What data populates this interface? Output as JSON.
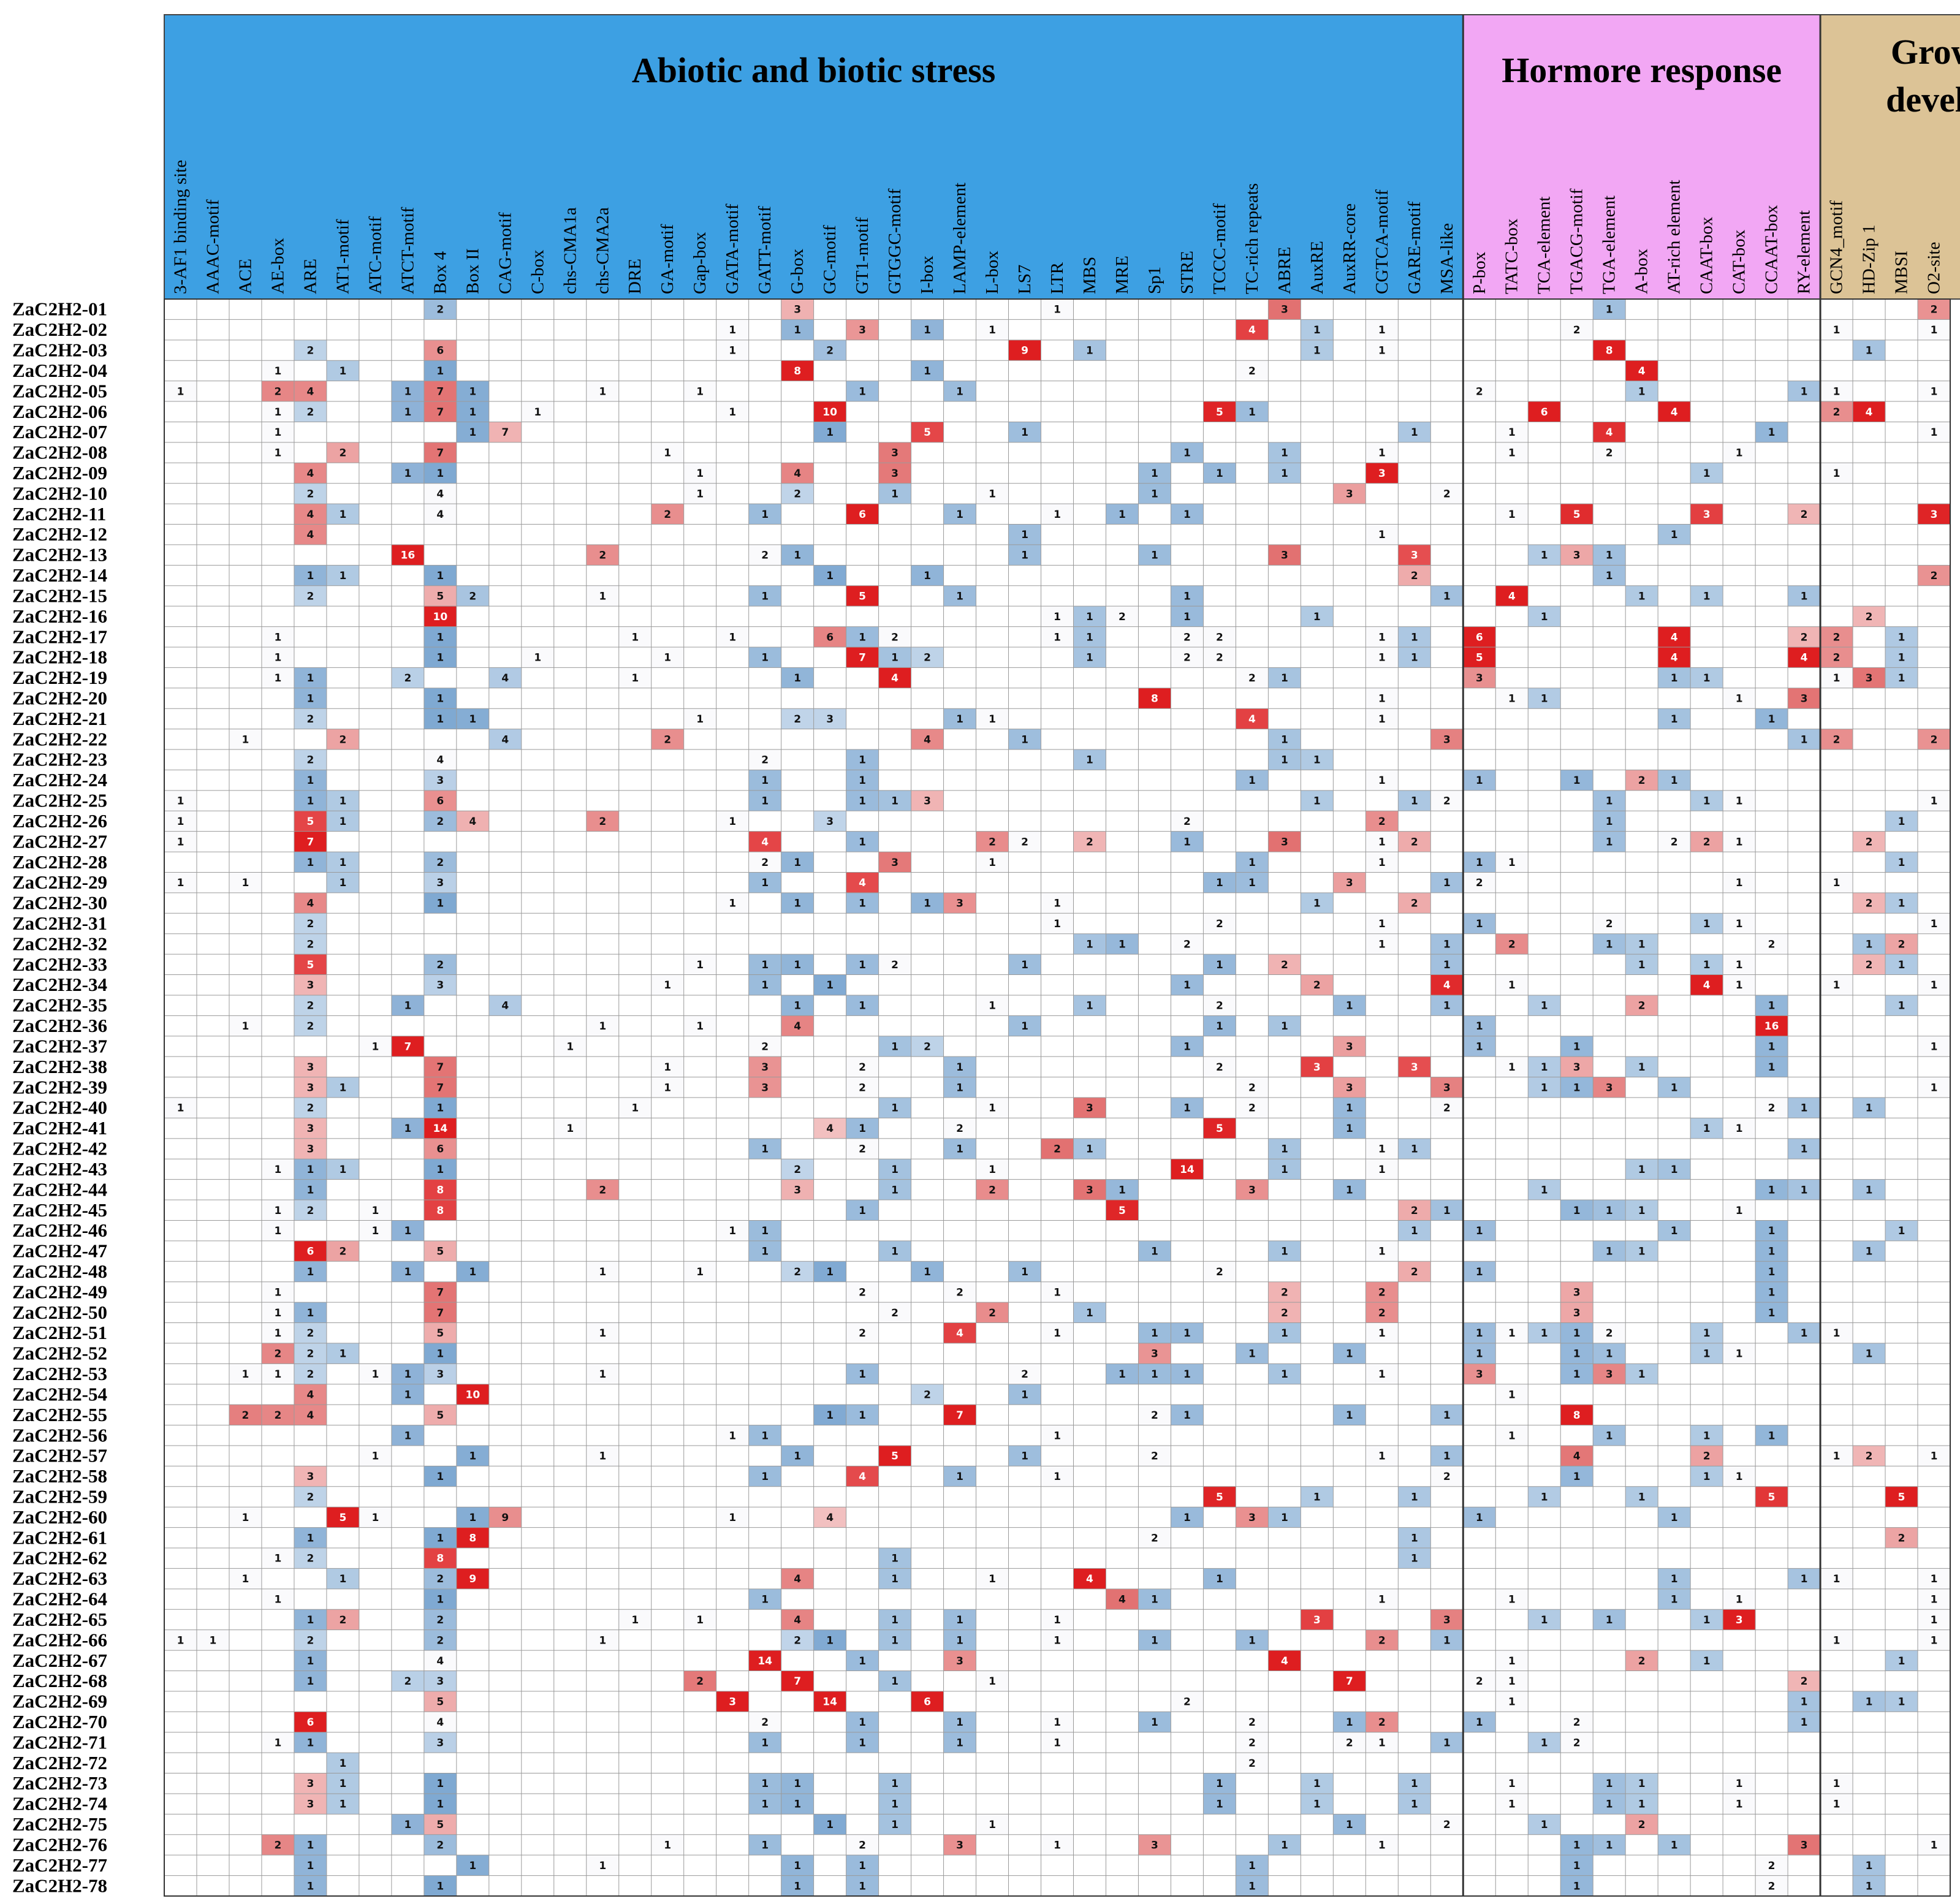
{
  "chart_data": {
    "type": "heatmap",
    "title": "",
    "groups": [
      {
        "name_lines": [
          "Abiotic and biotic stress"
        ],
        "color": "#3da0e3",
        "start": 0,
        "end": 39
      },
      {
        "name_lines": [
          "Hormore response"
        ],
        "color": "#f2a7f4",
        "start": 40,
        "end": 50
      },
      {
        "name_lines": [
          "Growth and",
          "development"
        ],
        "color": "#dcc396",
        "start": 51,
        "end": 60
      }
    ],
    "columns": [
      "3-AF1 binding site",
      "AAAC-motif",
      "ACE",
      "AE-box",
      "ARE",
      "AT1-motif",
      "ATC-motif",
      "ATCT-motif",
      "Box 4",
      "Box II",
      "CAG-motif",
      "C-box",
      "chs-CMA1a",
      "chs-CMA2a",
      "DRE",
      "GA-motif",
      "Gap-box",
      "GATA-motif",
      "GATT-motif",
      "G-box",
      "GC-motif",
      "GT1-motif",
      "GTGGC-motif",
      "I-box",
      "LAMP-element",
      "L-box",
      "LS7",
      "LTR",
      "MBS",
      "MRE",
      "Sp1",
      "STRE",
      "TCCC-motif",
      "TC-rich repeats",
      "ABRE",
      "AuxRE",
      "AuxRR-core",
      "CGTCA-motif",
      "GARE-motif",
      "MSA-like",
      "P-box",
      "TATC-box",
      "TCA-element",
      "TGACG-motif",
      "TGA-element",
      "A-box",
      "AT-rich element",
      "CAAT-box",
      "CAT-box",
      "CCAAT-box",
      "RY-element",
      "GCN4_motif",
      "HD-Zip 1",
      "MBSI",
      "O2-site"
    ],
    "rows": [
      "ZaC2H2-01",
      "ZaC2H2-02",
      "ZaC2H2-03",
      "ZaC2H2-04",
      "ZaC2H2-05",
      "ZaC2H2-06",
      "ZaC2H2-07",
      "ZaC2H2-08",
      "ZaC2H2-09",
      "ZaC2H2-10",
      "ZaC2H2-11",
      "ZaC2H2-12",
      "ZaC2H2-13",
      "ZaC2H2-14",
      "ZaC2H2-15",
      "ZaC2H2-16",
      "ZaC2H2-17",
      "ZaC2H2-18",
      "ZaC2H2-19",
      "ZaC2H2-20",
      "ZaC2H2-21",
      "ZaC2H2-22",
      "ZaC2H2-23",
      "ZaC2H2-24",
      "ZaC2H2-25",
      "ZaC2H2-26",
      "ZaC2H2-27",
      "ZaC2H2-28",
      "ZaC2H2-29",
      "ZaC2H2-30",
      "ZaC2H2-31",
      "ZaC2H2-32",
      "ZaC2H2-33",
      "ZaC2H2-34",
      "ZaC2H2-35",
      "ZaC2H2-36",
      "ZaC2H2-37",
      "ZaC2H2-38",
      "ZaC2H2-39",
      "ZaC2H2-40",
      "ZaC2H2-41",
      "ZaC2H2-42",
      "ZaC2H2-43",
      "ZaC2H2-44",
      "ZaC2H2-45",
      "ZaC2H2-46",
      "ZaC2H2-47",
      "ZaC2H2-48",
      "ZaC2H2-49",
      "ZaC2H2-50",
      "ZaC2H2-51",
      "ZaC2H2-52",
      "ZaC2H2-53",
      "ZaC2H2-54",
      "ZaC2H2-55",
      "ZaC2H2-56",
      "ZaC2H2-57",
      "ZaC2H2-58",
      "ZaC2H2-59",
      "ZaC2H2-60",
      "ZaC2H2-61",
      "ZaC2H2-62",
      "ZaC2H2-63",
      "ZaC2H2-64",
      "ZaC2H2-65",
      "ZaC2H2-66",
      "ZaC2H2-67",
      "ZaC2H2-68",
      "ZaC2H2-69",
      "ZaC2H2-70",
      "ZaC2H2-71",
      "ZaC2H2-72",
      "ZaC2H2-73",
      "ZaC2H2-74",
      "ZaC2H2-75",
      "ZaC2H2-76",
      "ZaC2H2-77",
      "ZaC2H2-78"
    ],
    "values": [
      "........2..........3.......1......3.........1.........2..1.1",
      ".................1.1.3.1.1.......4.1.1.....2.......1..1.2.1...1..1...1.........",
      "....2...6........1..2.....9.1......1.1......8.......1.....1......2.....1",
      "...1.1..1..........8...1.........2...........4..........2.",
      "1..24..171...1..1....1..1...............2....1....11..1.......1.........1.....1",
      "...12..171.1.....1..10...........51........6...4....24........",
      "...1.....17.........1..5..1...........1..1..4....1....1..1.11.....1..",
      "...1.2..7......1......3........1..1..1...1..2...1......11.....1........1...1",
      "....4..11.......1..4..3.......1.1.1..3.........1...1...1.....1",
      "....2...4.......1..2..1..1....1.....3..2................2.......1....1",
      "....41..4......2..1..6..1..1.1.1.........1.5...3..2...3..........1....1..1",
      "....4.....................1..........1........1........1...1",
      ".......16.....2....21......1...1...3...3...131...........31..........1",
      "....11..1...........1..1..............2.....1.........2...12..........11",
      "....2...52...1....1..5..1......1.......1.4...1.1..1.....1...1..11.....1",
      "........10..................112.1...1......1.........2",
      "...1....1.....1..1..612....11..22....11.6.....4...22.1...3.1",
      "...1....1..1...1..1..712....1..22....11.5.....4...42.1...2.1",
      "...11..2..4...1....1..4..........21.....3.....11...131...2",
      "....1...1.....................8......1...11.....1.3.........1..1....1..",
      "....2...11......1..23...11.......4...1........1..1.......1..1",
      "..1..2....4....2.......4..1.......1....3..........12..2..........",
      "....2...4.........2..1......1.....11....................1",
      "....1...3.........1..1...........1...1..1..1.21..........1",
      "1...11..6.........1..113...........1..12....1..11.....1..........1..1",
      "1...51..24...2...1..3..........2.....2......1........1..1.1.......1..1...1",
      "1...7.............4..1...22.2..1..3..12.....1.221...2",
      "....11..2.........21..3..1.......1...1..11...........1",
      "1.1..1..3.........1..4..........11..3..12.......1..1....1...1.......1",
      "....4...1........1.1.1.13..1.......1..2.............21.....2",
      "....2......................1....2....1..1...2..11.....11.....2.....12..1...2",
      "....2.......................11.2.....1.1.2..11...2..12....1...2...1",
      "....5...2.......1.11.12...1.....1.2....1.....1.11...21..2",
      "....3...3......1..1.1..........1...2...4.1.....41..1..1...1.......1.........",
      "....2..1..4........1.1...1..1...2...1..1..1..2...1...1...1...1",
      "..1.2........1..1..4......1.....1.1.....1........16......1",
      "......17....1.....2...12.......1....3...1..1.....1....1.2.......1.......",
      "....3...7......1..3..2..1.......2..3..3..113.1...1.........11",
      "....31..7......1..3..2..1........2..3..3..113.1.......11",
      "1...2...1.....1.......1..1..3..1.2..1..2.........21.1..1...1...1",
      "....3..114...1.......41..2.......5...1..........11",
      "....3...6.........1..2..1..21.....1..11...........1....1",
      "...111..1..........2..1..1.....14..1..1.......11.........",
      "....1...8....2.....3..1..2..31...3..1.....1......11.1.......1",
      "...12.1.8............1.......5........21...111..1",
      "...1..11.........11...................1.1.....1..1...1..1..1...1...1.....1",
      "....62..5.........1...1.......1...1..1......11...1..1..1.........11",
      "....1..1.1...1..1..21..1..1.....2.....2.1........1......1",
      "...1....7............2..2..1......2..2.....3.....1",
      "...11...7.............2..2..1.....2..2.....3.....1",
      "...12...5....1.......2..4..1..11..1..1..11112..1..11....1",
      "...221..1.....................3..1..1...1..11..11...1..2",
      "..112.113....1.......1....2..111..1..1..3..131",
      "....4..1.10.............2..1..............1.................1",
      "..224...5...........11..7.....21....1..1...8................91",
      ".......1.........11........1.............1..1..1.1......1",
      "......1..1...1.....1..5...1...2......1.1...4...2...12.1..1...2",
      "....3...1.........1..4..1..1...........2...1...11..........1.2",
      "....2...........................5..1..1...1..1...5...5...51..2",
      "..1..51..19......1..4..........1.31.....1.....1........1.....1",
      "....1...18....................2.......1..............2...12..1.......1",
      "...12...8.............1...............1.....................2..21",
      "..1..1..29.........4..1..1..4...1.............1...11..1..1.1",
      "...1....1.........1..........41......1...1....1.1.....1....12",
      "....12..2.....1.1..4..1.1..1.......3...3..1.1..13.....1....1....1",
      "11..2...2....1.....21.1.1..1..1..1...2.1...........1..1..1...1",
      "....1...4.........14..1..3.........4......1...2.1.....1..1",
      "....1..23.......2..7..1..1..........7...21........2..........11",
      "........5........3..14..6.......2.........1........1.11",
      "....6...4.........2..1..1..1..1..2..12..1..2......1",
      "...11...3.........1..1..1..1.....2..21.1..12",
      ".....1...........................2",
      "....31..1.........11..1.........1..1..1..1..11..1..1......11.1..1",
      "....31..1.........11..1.........1..1..1..1..11..1..1......11.1..1",
      ".......15...........1.1..1..........1..2..1..2...........1",
      "...21...2......1..1..2..3..1..3...1..1.....11.1...3...1",
      "....1....1...1.....1.1...........1.........1.....2..1...1",
      "....1...1..........1.1...........1.........1.....2..1...1"
    ]
  }
}
